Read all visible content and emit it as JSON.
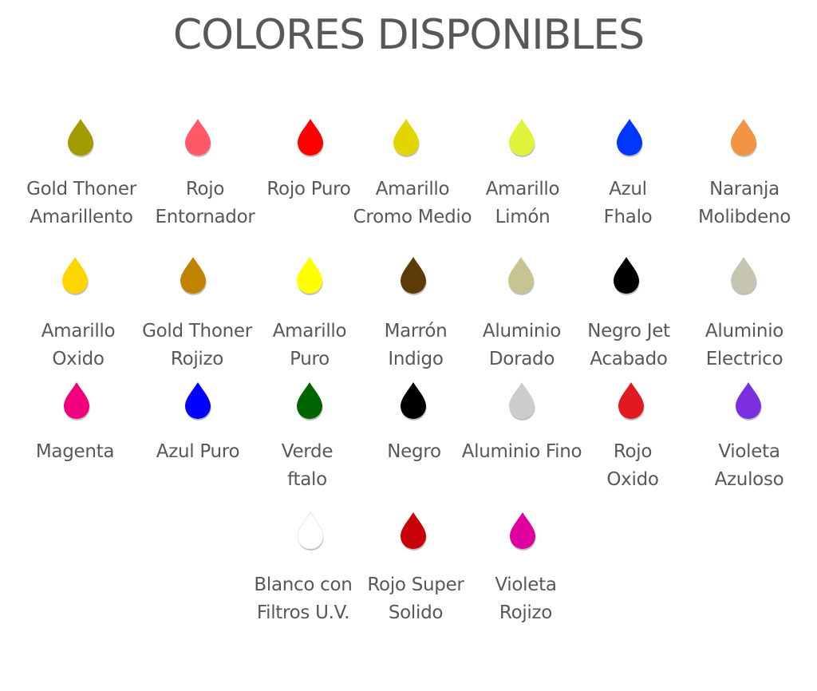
{
  "title": "COLORES DISPONIBLES",
  "rows": [
    [
      {
        "name": [
          "Gold Thoner",
          "Amarillento"
        ],
        "color": "#a39c00"
      },
      {
        "name": [
          "Rojo",
          "Entornador"
        ],
        "color": "#ff5a66"
      },
      {
        "name": [
          "Rojo Puro"
        ],
        "color": "#ff0000"
      },
      {
        "name": [
          "Amarillo",
          "Cromo Medio"
        ],
        "color": "#e3d600"
      },
      {
        "name": [
          "Amarillo",
          "Limón"
        ],
        "color": "#e0f23a"
      },
      {
        "name": [
          "Azul",
          "Fhalo"
        ],
        "color": "#0037ff"
      },
      {
        "name": [
          "Naranja",
          "Molibdeno"
        ],
        "color": "#f39442"
      }
    ],
    [
      {
        "name": [
          "Amarillo",
          "Oxido"
        ],
        "color": "#ffd500"
      },
      {
        "name": [
          "Gold Thoner",
          "Rojizo"
        ],
        "color": "#c08300"
      },
      {
        "name": [
          "Amarillo",
          "Puro"
        ],
        "color": "#ffff00"
      },
      {
        "name": [
          "Marrón",
          "Indigo"
        ],
        "color": "#5c3b06"
      },
      {
        "name": [
          "Aluminio",
          "Dorado"
        ],
        "color": "#c8c491"
      },
      {
        "name": [
          "Negro Jet",
          "Acabado"
        ],
        "color": "#000000"
      },
      {
        "name": [
          "Aluminio",
          "Electrico"
        ],
        "color": "#c5c5b2"
      }
    ],
    [
      {
        "name": [
          "Magenta"
        ],
        "color": "#f0007f"
      },
      {
        "name": [
          "Azul Puro"
        ],
        "color": "#0000ff"
      },
      {
        "name": [
          "Verde",
          "ftalo"
        ],
        "color": "#006400"
      },
      {
        "name": [
          "Negro"
        ],
        "color": "#000000"
      },
      {
        "name": [
          "Aluminio Fino"
        ],
        "color": "#cccccc"
      },
      {
        "name": [
          "Rojo",
          "Oxido"
        ],
        "color": "#e01a1e"
      },
      {
        "name": [
          "Violeta",
          "Azuloso"
        ],
        "color": "#7b2fe0"
      }
    ],
    [
      {
        "name": [
          "Blanco con",
          "Filtros U.V."
        ],
        "color": "#ffffff"
      },
      {
        "name": [
          "Rojo Super",
          "Solido"
        ],
        "color": "#c80008"
      },
      {
        "name": [
          "Violeta",
          "Rojizo"
        ],
        "color": "#e000a0"
      }
    ]
  ]
}
